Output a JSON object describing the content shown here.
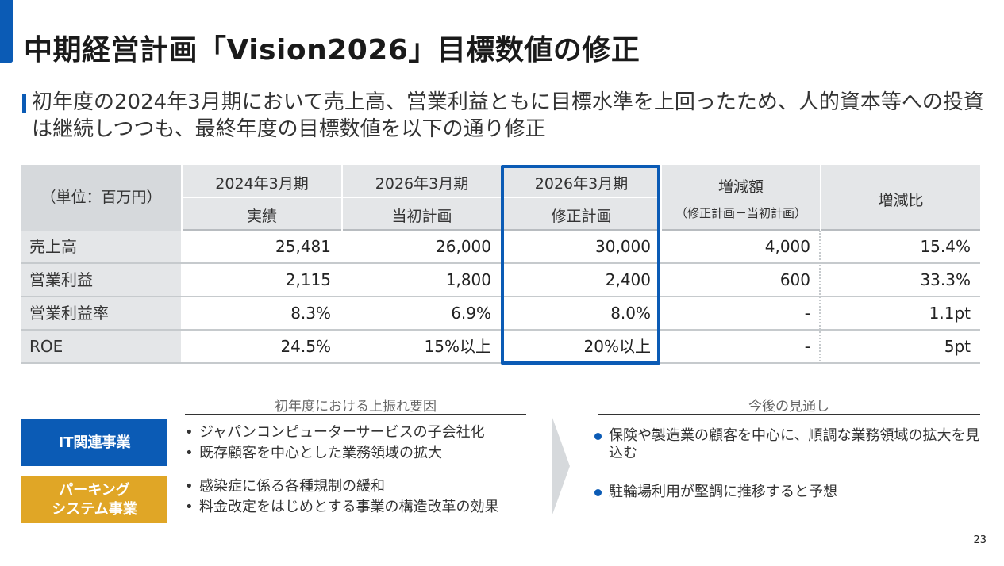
{
  "title": "中期経営計画「Vision2026」目標数値の修正",
  "subtitle": "初年度の2024年3月期において売上高、営業利益ともに目標水準を上回ったため、人的資本等への投資は継続しつつも、最終年度の目標数値を以下の通り修正",
  "table": {
    "unit_label": "（単位：百万円）",
    "headers": [
      {
        "top": "2024年3月期",
        "bottom": "実績"
      },
      {
        "top": "2026年3月期",
        "bottom": "当初計画"
      },
      {
        "top": "2026年3月期",
        "bottom": "修正計画"
      },
      {
        "top": "増減額",
        "bottom": "（修正計画－当初計画）"
      },
      {
        "top": "増減比",
        "bottom": ""
      }
    ],
    "rows": [
      {
        "label": "売上高",
        "values": [
          "25,481",
          "26,000",
          "30,000",
          "4,000",
          "15.4%"
        ]
      },
      {
        "label": "営業利益",
        "values": [
          "2,115",
          "1,800",
          "2,400",
          "600",
          "33.3%"
        ]
      },
      {
        "label": "営業利益率",
        "values": [
          "8.3%",
          "6.9%",
          "8.0%",
          "-",
          "1.1pt"
        ]
      },
      {
        "label": "ROE",
        "values": [
          "24.5%",
          "15%以上",
          "20%以上",
          "-",
          "5pt"
        ]
      }
    ]
  },
  "factors": {
    "heading": "初年度における上振れ要因",
    "segments": [
      {
        "name": "IT関連事業",
        "bullets": [
          "ジャパンコンピューターサービスの子会社化",
          "既存顧客を中心とした業務領域の拡大"
        ]
      },
      {
        "name_line1": "パーキング",
        "name_line2": "システム事業",
        "bullets": [
          "感染症に係る各種規制の緩和",
          "料金改定をはじめとする事業の構造改革の効果"
        ]
      }
    ]
  },
  "outlook": {
    "heading": "今後の見通し",
    "items": [
      "保険や製造業の顧客を中心に、順調な業務領域の拡大を見込む",
      "駐輪場利用が堅調に推移すると予想"
    ]
  },
  "page_number": "23",
  "colors": {
    "accent": "#0b5bb5",
    "parking": "#e0a626",
    "header_bg": "#e4e6e8"
  }
}
